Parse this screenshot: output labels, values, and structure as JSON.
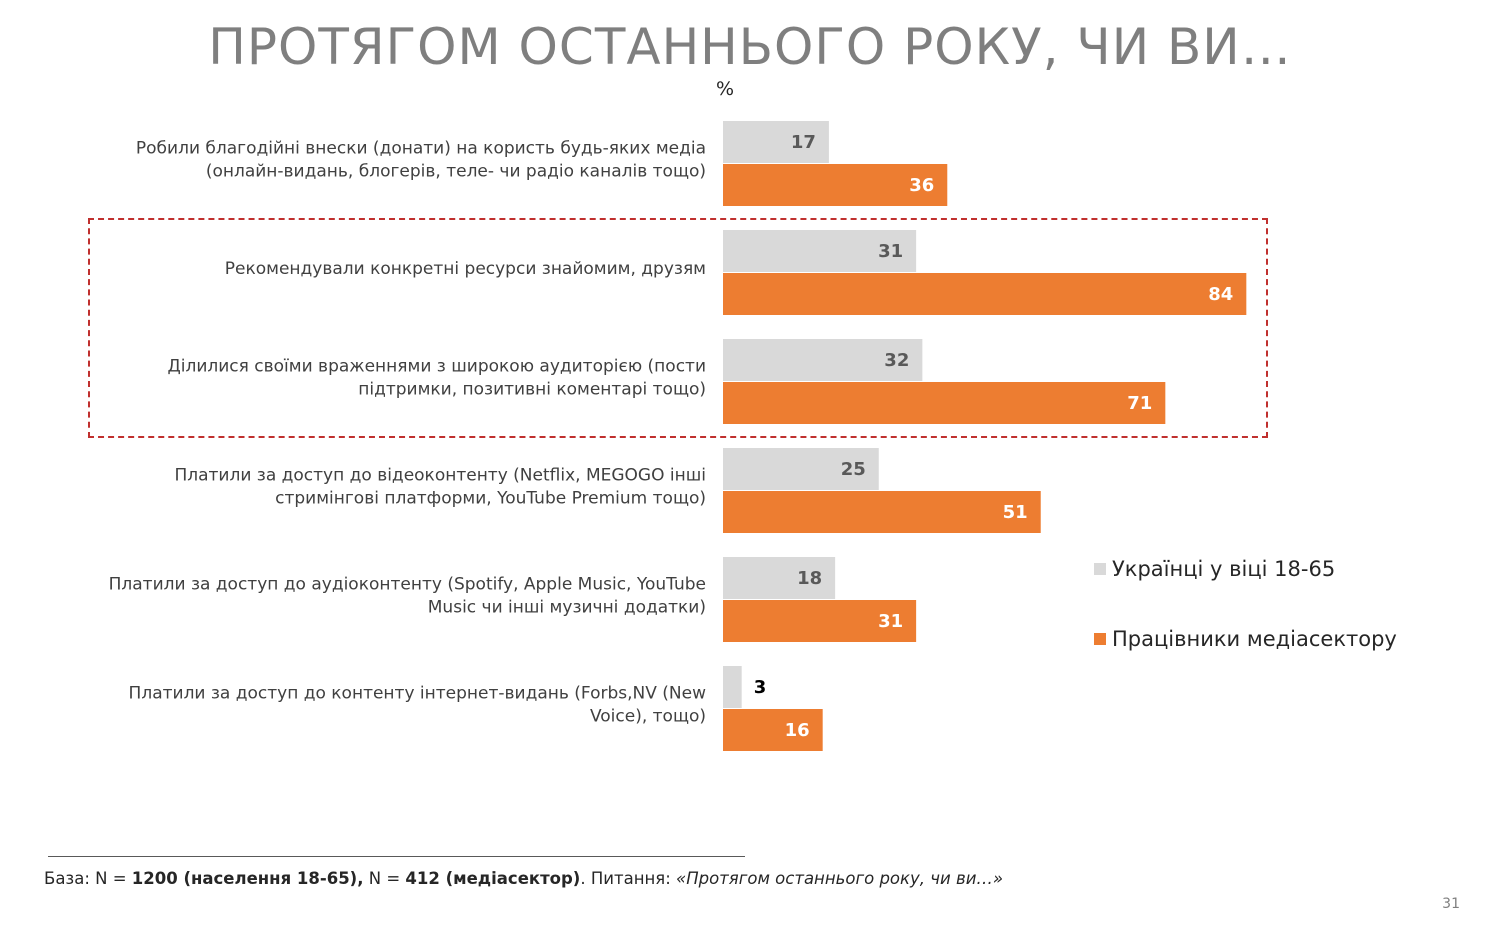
{
  "title": "ПРОТЯГОМ ОСТАННЬОГО РОКУ, ЧИ ВИ…",
  "unit": "%",
  "colors": {
    "population": "#d9d9d9",
    "media": "#ed7d31",
    "highlight": "#c0302e"
  },
  "legend": [
    {
      "label": "Українці у віці 18-65",
      "color": "#d9d9d9"
    },
    {
      "label": "Працівники медіасектору",
      "color": "#ed7d31"
    }
  ],
  "chart_data": {
    "type": "bar",
    "orientation": "horizontal",
    "unit": "%",
    "categories": [
      [
        "Робили благодійні внески (донати) на користь будь-яких медіа",
        "(онлайн-видань, блогерів, теле- чи радіо каналів тощо)"
      ],
      [
        "Рекомендували конкретні ресурси знайомим, друзям"
      ],
      [
        "Ділилися своїми враженнями з широкою аудиторією (пости",
        "підтримки, позитивні коментарі тощо)"
      ],
      [
        "Платили за доступ до відеоконтенту (Netflix, MEGOGO інші",
        "стримінгові платформи, YouTube Premium тощо)"
      ],
      [
        "Платили за доступ до аудіоконтенту (Spotify, Apple Music, YouTube",
        "Music чи інші музичні додатки)"
      ],
      [
        "Платили за доступ до контенту інтернет-видань (Forbs,NV (New",
        "Voice), тощо)"
      ]
    ],
    "series": [
      {
        "name": "Українці у віці 18-65",
        "color": "#d9d9d9",
        "values": [
          17,
          31,
          32,
          25,
          18,
          3
        ]
      },
      {
        "name": "Працівники медіасектору",
        "color": "#ed7d31",
        "values": [
          36,
          84,
          71,
          51,
          31,
          16
        ]
      }
    ],
    "highlighted_categories": [
      1,
      2
    ],
    "legend_position": "right"
  },
  "footnote": {
    "prefix": "База: N = ",
    "n1": "1200 (населення 18-65),",
    "mid": " N = ",
    "n2": "412 (медіасектор)",
    "question_prefix": ". Питання: ",
    "question": "«Протягом останнього року, чи ви…»"
  },
  "page_number": "31"
}
